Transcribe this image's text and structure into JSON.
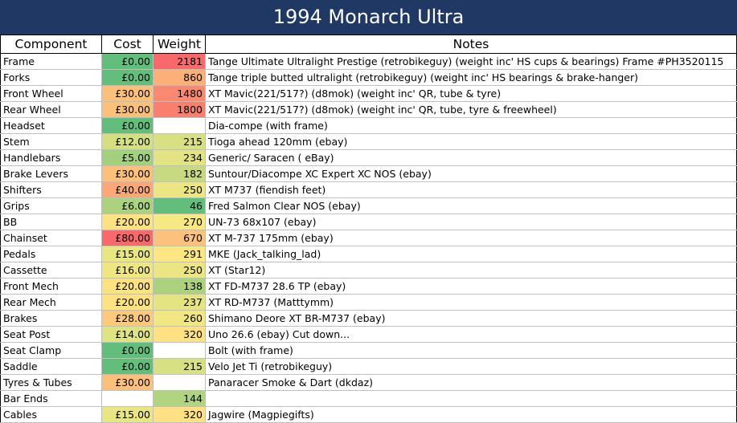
{
  "title": "1994 Monarch Ultra",
  "headers": {
    "component": "Component",
    "cost": "Cost",
    "weight": "Weight",
    "notes": "Notes"
  },
  "rows": [
    {
      "component": "Frame",
      "cost": "£0.00",
      "weight": "2181",
      "notes": "Tange Ultimate Ultralight Prestige (retrobikeguy) (weight inc' HS cups & bearings) Frame #PH3520115",
      "cost_color": "#63be7b",
      "weight_color": "#f8696b"
    },
    {
      "component": "Forks",
      "cost": "£0.00",
      "weight": "860",
      "notes": "Tange triple butted ultralight (retrobikeguy) (weight inc' HS bearings & brake-hanger)",
      "cost_color": "#63be7b",
      "weight_color": "#fbb079"
    },
    {
      "component": "Front Wheel",
      "cost": "£30.00",
      "weight": "1480",
      "notes": "XT Mavic(221/517?) (d8mok) (weight inc' QR, tube & tyre)",
      "cost_color": "#fbc07b",
      "weight_color": "#f98970"
    },
    {
      "component": "Rear Wheel",
      "cost": "£30.00",
      "weight": "1800",
      "notes": "XT Mavic(221/517?) (d8mok) (weight inc' QR, tube, tyre & freewheel)",
      "cost_color": "#fbc07b",
      "weight_color": "#f97f6f"
    },
    {
      "component": "Headset",
      "cost": "£0.00",
      "weight": "",
      "notes": "Dia-compe (with frame)",
      "cost_color": "#63be7b",
      "weight_color": "#ffffff"
    },
    {
      "component": "Stem",
      "cost": "£12.00",
      "weight": "215",
      "notes": "Tioga ahead 120mm (ebay)",
      "cost_color": "#d4df81",
      "weight_color": "#d7e082"
    },
    {
      "component": "Handlebars",
      "cost": "£5.00",
      "weight": "234",
      "notes": "Generic/ Saracen ( eBay)",
      "cost_color": "#a2d07f",
      "weight_color": "#e2e383"
    },
    {
      "component": "Brake Levers",
      "cost": "£30.00",
      "weight": "182",
      "notes": "Suntour/Diacompe XC Expert XC NOS (ebay)",
      "cost_color": "#fbc07b",
      "weight_color": "#c7da81"
    },
    {
      "component": "Shifters",
      "cost": "£40.00",
      "weight": "250",
      "notes": "XT M737 (fiendish feet)",
      "cost_color": "#fba777",
      "weight_color": "#ebe583"
    },
    {
      "component": "Grips",
      "cost": "£6.00",
      "weight": "46",
      "notes": "Fred Salmon Clear NOS (ebay)",
      "cost_color": "#aad27f",
      "weight_color": "#63be7b"
    },
    {
      "component": "BB",
      "cost": "£20.00",
      "weight": "270",
      "notes": "UN-73 68x107 (ebay)",
      "cost_color": "#fde282",
      "weight_color": "#f6e883"
    },
    {
      "component": "Chainset",
      "cost": "£80.00",
      "weight": "670",
      "notes": "XT M-737 175mm (ebay)",
      "cost_color": "#f8696b",
      "weight_color": "#fcc17c"
    },
    {
      "component": "Pedals",
      "cost": "£15.00",
      "weight": "291",
      "notes": "MKE (Jack_talking_lad)",
      "cost_color": "#e8e583",
      "weight_color": "#fee783"
    },
    {
      "component": "Cassette",
      "cost": "£16.00",
      "weight": "250",
      "notes": "XT (Star12)",
      "cost_color": "#eee683",
      "weight_color": "#ebe583"
    },
    {
      "component": "Front Mech",
      "cost": "£20.00",
      "weight": "138",
      "notes": "XT FD-M737 28.6 TP (ebay)",
      "cost_color": "#fde282",
      "weight_color": "#acd27f"
    },
    {
      "component": "Rear Mech",
      "cost": "£20.00",
      "weight": "237",
      "notes": "XT RD-M737 (Matttymm)",
      "cost_color": "#fde282",
      "weight_color": "#e4e483"
    },
    {
      "component": "Brakes",
      "cost": "£28.00",
      "weight": "260",
      "notes": "Shimano Deore XT BR-M737 (ebay)",
      "cost_color": "#fcc97d",
      "weight_color": "#f0e683"
    },
    {
      "component": "Seat Post",
      "cost": "£14.00",
      "weight": "320",
      "notes": "Uno 26.6 (ebay) Cut down...",
      "cost_color": "#e0e383",
      "weight_color": "#fee182"
    },
    {
      "component": "Seat Clamp",
      "cost": "£0.00",
      "weight": "",
      "notes": "Bolt (with frame)",
      "cost_color": "#63be7b",
      "weight_color": "#ffffff"
    },
    {
      "component": "Saddle",
      "cost": "£0.00",
      "weight": "215",
      "notes": "Velo Jet Ti (retrobikeguy)",
      "cost_color": "#63be7b",
      "weight_color": "#d7e082"
    },
    {
      "component": "Tyres & Tubes",
      "cost": "£30.00",
      "weight": "",
      "notes": "Panaracer  Smoke & Dart  (dkdaz)",
      "cost_color": "#fbc07b",
      "weight_color": "#ffffff"
    },
    {
      "component": "Bar Ends",
      "cost": "",
      "weight": "144",
      "notes": "",
      "cost_color": "#ffffff",
      "weight_color": "#b0d47f"
    },
    {
      "component": "Cables",
      "cost": "£15.00",
      "weight": "320",
      "notes": "Jagwire (Magpiegifts)",
      "cost_color": "#e8e583",
      "weight_color": "#fee182"
    }
  ]
}
